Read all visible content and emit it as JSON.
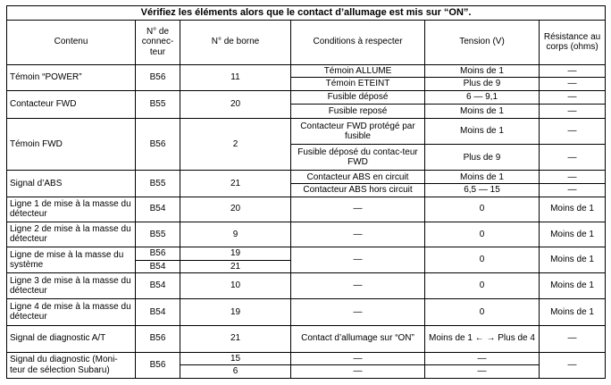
{
  "title": "Vérifiez les éléments alors que le contact d’allumage est mis sur “ON”.",
  "headers": {
    "contenu": "Contenu",
    "connecteur": "N° de connec-teur",
    "borne": "N° de borne",
    "conditions": "Conditions à respecter",
    "tension": "Tension (V)",
    "resistance": "Résistance au corps (ohms)"
  },
  "rows": {
    "power": {
      "contenu": "Témoin “POWER”",
      "connecteur": "B56",
      "borne": "11",
      "cond1": "Témoin ALLUME",
      "tension1": "Moins de 1",
      "res1": "—",
      "cond2": "Témoin ETEINT",
      "tension2": "Plus de 9",
      "res2": "—"
    },
    "contacteur_fwd": {
      "contenu": "Contacteur FWD",
      "connecteur": "B55",
      "borne": "20",
      "cond1": "Fusible déposé",
      "tension1": "6 — 9,1",
      "res1": "—",
      "cond2": "Fusible reposé",
      "tension2": "Moins de 1",
      "res2": "—"
    },
    "temoin_fwd": {
      "contenu": "Témoin FWD",
      "connecteur": "B56",
      "borne": "2",
      "cond1": "Contacteur FWD protégé par fusible",
      "tension1": "Moins de 1",
      "res1": "—",
      "cond2": "Fusible déposé du contac-teur FWD",
      "tension2": "Plus de 9",
      "res2": "—"
    },
    "abs": {
      "contenu": "Signal d’ABS",
      "connecteur": "B55",
      "borne": "21",
      "cond1": "Contacteur ABS en circuit",
      "tension1": "Moins de 1",
      "res1": "—",
      "cond2": "Contacteur ABS hors circuit",
      "tension2": "6,5 — 15",
      "res2": "—"
    },
    "masse1": {
      "contenu": "Ligne 1 de mise à la masse du détecteur",
      "connecteur": "B54",
      "borne": "20",
      "cond": "—",
      "tension": "0",
      "res": "Moins de 1"
    },
    "masse2": {
      "contenu": "Ligne 2 de mise à la masse du détecteur",
      "connecteur": "B55",
      "borne": "9",
      "cond": "—",
      "tension": "0",
      "res": "Moins de 1"
    },
    "masse_sys": {
      "contenu": "Ligne de mise à la masse du système",
      "connecteur1": "B56",
      "borne1": "19",
      "connecteur2": "B54",
      "borne2": "21",
      "cond": "—",
      "tension": "0",
      "res": "Moins de 1"
    },
    "masse3": {
      "contenu": "Ligne 3 de mise à la masse du détecteur",
      "connecteur": "B54",
      "borne": "10",
      "cond": "—",
      "tension": "0",
      "res": "Moins de 1"
    },
    "masse4": {
      "contenu": "Ligne 4 de mise à la masse du détecteur",
      "connecteur": "B54",
      "borne": "19",
      "cond": "—",
      "tension": "0",
      "res": "Moins de 1"
    },
    "diag_at": {
      "contenu": "Signal de diagnostic A/T",
      "connecteur": "B56",
      "borne": "21",
      "cond": "Contact d’allumage sur “ON”",
      "tension": "Moins de 1 ← → Plus de 4",
      "res": "—"
    },
    "diag_subaru": {
      "contenu": "Signal du diagnostic (Moni-teur de sélection Subaru)",
      "connecteur": "B56",
      "borne1": "15",
      "cond1": "—",
      "tension1": "—",
      "borne2": "6",
      "cond2": "—",
      "tension2": "—",
      "res": "—"
    }
  }
}
